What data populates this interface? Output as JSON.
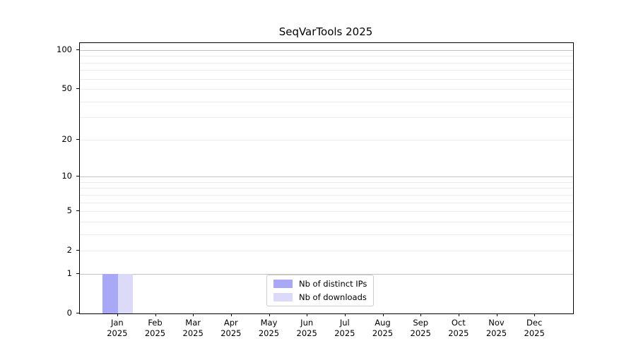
{
  "figure": {
    "title": "SeqVarTools 2025"
  },
  "chart_data": {
    "type": "bar",
    "title": "SeqVarTools 2025",
    "yscale": "log1p",
    "ylim": [
      0,
      100
    ],
    "grid": true,
    "legend_position": "bottom-center",
    "yticks": [
      0,
      1,
      2,
      5,
      10,
      20,
      50,
      100
    ],
    "grid_major": [
      1,
      10,
      100
    ],
    "grid_minor": [
      2,
      3,
      4,
      5,
      6,
      7,
      8,
      9,
      20,
      30,
      40,
      50,
      60,
      70,
      80,
      90
    ],
    "categories": [
      {
        "month": "Jan",
        "year": "2025"
      },
      {
        "month": "Feb",
        "year": "2025"
      },
      {
        "month": "Mar",
        "year": "2025"
      },
      {
        "month": "Apr",
        "year": "2025"
      },
      {
        "month": "May",
        "year": "2025"
      },
      {
        "month": "Jun",
        "year": "2025"
      },
      {
        "month": "Jul",
        "year": "2025"
      },
      {
        "month": "Aug",
        "year": "2025"
      },
      {
        "month": "Sep",
        "year": "2025"
      },
      {
        "month": "Oct",
        "year": "2025"
      },
      {
        "month": "Nov",
        "year": "2025"
      },
      {
        "month": "Dec",
        "year": "2025"
      }
    ],
    "series": [
      {
        "name": "Nb of distinct IPs",
        "color": "#a8a8f6",
        "values": [
          1,
          0,
          0,
          0,
          0,
          0,
          0,
          0,
          0,
          0,
          0,
          0
        ]
      },
      {
        "name": "Nb of downloads",
        "color": "#dbdbf9",
        "values": [
          1,
          0,
          0,
          0,
          0,
          0,
          0,
          0,
          0,
          0,
          0,
          0
        ]
      }
    ],
    "colors": {
      "axis": "#000000",
      "grid_major": "#c3c3c3",
      "grid_minor": "#ebebeb",
      "legend_border": "#cccccc"
    }
  }
}
